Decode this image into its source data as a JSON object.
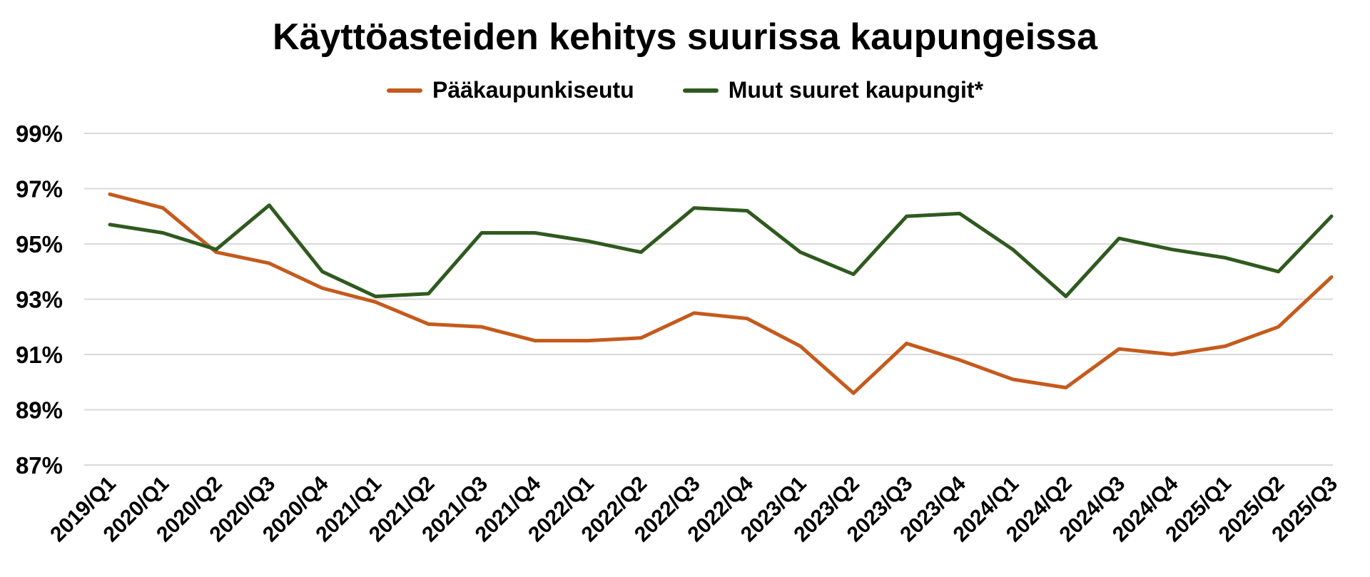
{
  "chart_data": {
    "type": "line",
    "title": "Käyttöasteiden kehitys suurissa kaupungeissa",
    "xlabel": "",
    "ylabel": "",
    "categories": [
      "2019/Q1",
      "2020/Q1",
      "2020/Q2",
      "2020/Q3",
      "2020/Q4",
      "2021/Q1",
      "2021/Q2",
      "2021/Q3",
      "2021/Q4",
      "2022/Q1",
      "2022/Q2",
      "2022/Q3",
      "2022/Q4",
      "2023/Q1",
      "2023/Q2",
      "2023/Q3",
      "2023/Q4",
      "2024/Q1",
      "2024/Q2",
      "2024/Q3",
      "2024/Q4",
      "2025/Q1",
      "2025/Q2",
      "2025/Q3"
    ],
    "ylim": [
      87,
      99
    ],
    "yticks": [
      87,
      89,
      91,
      93,
      95,
      97,
      99
    ],
    "ytick_labels": [
      "87%",
      "89%",
      "91%",
      "93%",
      "95%",
      "97%",
      "99%"
    ],
    "grid": true,
    "legend_position": "top-center",
    "series": [
      {
        "name": "Pääkaupunkiseutu",
        "color": "#c55a1d",
        "values": [
          96.8,
          96.3,
          94.7,
          94.3,
          93.4,
          92.9,
          92.1,
          92.0,
          91.5,
          91.5,
          91.6,
          92.5,
          92.3,
          91.3,
          89.6,
          91.4,
          90.8,
          90.1,
          89.8,
          91.2,
          91.0,
          91.3,
          92.0,
          93.8
        ]
      },
      {
        "name": "Muut suuret kaupungit*",
        "color": "#2f5a1f",
        "values": [
          95.7,
          95.4,
          94.8,
          96.4,
          94.0,
          93.1,
          93.2,
          95.4,
          95.4,
          95.1,
          94.7,
          96.3,
          96.2,
          94.7,
          93.9,
          96.0,
          96.1,
          94.8,
          93.1,
          95.2,
          94.8,
          94.5,
          94.0,
          96.0
        ]
      }
    ]
  }
}
